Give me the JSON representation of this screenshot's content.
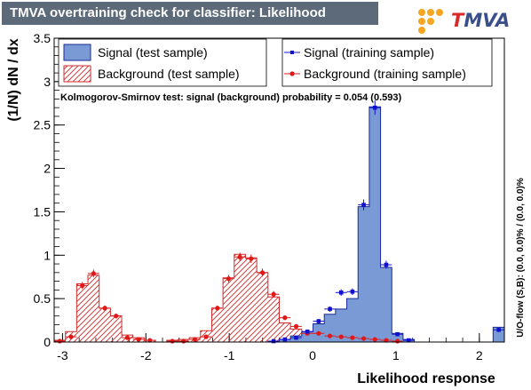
{
  "header": {
    "title": "TMVA overtraining check for classifier: Likelihood",
    "logo_t": "T",
    "logo_rest": "MVA"
  },
  "colors": {
    "header_bg": "#5c6a79",
    "signal_fill": "#7a9ad6",
    "signal_line": "#1a2a9a",
    "background_hatch": "#d22a2a",
    "signal_marker": "#1010d0",
    "background_marker": "#e01818"
  },
  "chart_data": {
    "type": "histogram",
    "xlabel": "Likelihood response",
    "ylabel": "(1/N) dN / dx",
    "xlim": [
      -3.1,
      2.3
    ],
    "ylim": [
      0,
      3.5
    ],
    "x_ticks": [
      -3,
      -2,
      -1,
      0,
      1,
      2
    ],
    "y_ticks": [
      0,
      0.5,
      1,
      1.5,
      2,
      2.5,
      3,
      3.5
    ],
    "ks_text": "Kolmogorov-Smirnov test: signal (background) probability = 0.054 (0.593)",
    "side_text": "U/O-flow (S,B): (0.0, 0.0)% / (0.0, 0.0)%",
    "legend": [
      {
        "label": "Signal (test sample)",
        "style": "filled"
      },
      {
        "label": "Signal (training sample)",
        "style": "marker"
      },
      {
        "label": "Background (test sample)",
        "style": "hatched"
      },
      {
        "label": "Background (training sample)",
        "style": "marker"
      }
    ],
    "bin_edges": [
      -3.1,
      -2.965,
      -2.83,
      -2.695,
      -2.56,
      -2.425,
      -2.29,
      -2.155,
      -2.02,
      -1.885,
      -1.75,
      -1.615,
      -1.48,
      -1.345,
      -1.21,
      -1.075,
      -0.94,
      -0.805,
      -0.67,
      -0.535,
      -0.4,
      -0.265,
      -0.13,
      0.005,
      0.14,
      0.275,
      0.41,
      0.545,
      0.68,
      0.815,
      0.95,
      1.085,
      1.22,
      1.355,
      1.49,
      1.625,
      1.76,
      1.895,
      2.03,
      2.165,
      2.3
    ],
    "series": [
      {
        "name": "Signal (test sample)",
        "values": [
          0,
          0,
          0,
          0,
          0,
          0,
          0,
          0,
          0,
          0,
          0,
          0,
          0,
          0,
          0,
          0,
          0,
          0,
          0,
          0.01,
          0.03,
          0.07,
          0.12,
          0.21,
          0.32,
          0.38,
          0.5,
          1.56,
          2.71,
          0.86,
          0.1,
          0.03,
          0,
          0,
          0,
          0,
          0,
          0,
          0,
          0.17
        ]
      },
      {
        "name": "Background (test sample)",
        "values": [
          0.02,
          0.12,
          0.67,
          0.77,
          0.39,
          0.3,
          0.08,
          0.05,
          0.02,
          0,
          0.02,
          0.03,
          0.05,
          0.13,
          0.39,
          0.74,
          1.01,
          0.97,
          0.8,
          0.52,
          0.22,
          0.15,
          0.09,
          0.08,
          0.08,
          0.06,
          0.05,
          0.04,
          0.03,
          0.02,
          0.01,
          0,
          0,
          0,
          0,
          0,
          0,
          0,
          0,
          0
        ]
      },
      {
        "name": "Signal (training sample)",
        "values": [
          0,
          0,
          0,
          0,
          0,
          0,
          0,
          0,
          0,
          0,
          0,
          0,
          0,
          0,
          0,
          0,
          0,
          0,
          0,
          0.01,
          0.03,
          0.05,
          0.12,
          0.24,
          0.38,
          0.57,
          0.58,
          1.58,
          2.7,
          0.89,
          0.09,
          0.02,
          0,
          0,
          0,
          0,
          0,
          0,
          0,
          0.14
        ]
      },
      {
        "name": "Background (training sample)",
        "values": [
          0.01,
          0.06,
          0.65,
          0.79,
          0.39,
          0.3,
          0.05,
          0.03,
          0.02,
          0,
          0.01,
          0.01,
          0.03,
          0.06,
          0.39,
          0.73,
          0.98,
          0.96,
          0.8,
          0.55,
          0.28,
          0.18,
          0.1,
          0.1,
          0.07,
          0.06,
          0.05,
          0.04,
          0.03,
          0.02,
          0.01,
          0,
          0,
          0,
          0,
          0,
          0,
          0,
          0,
          0
        ]
      }
    ]
  }
}
